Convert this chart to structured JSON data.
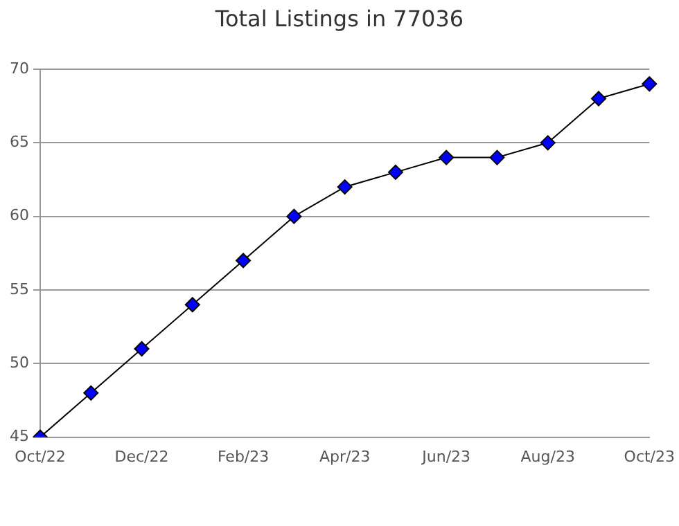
{
  "chart_data": {
    "type": "line",
    "title": "Total Listings in 77036",
    "categories": [
      "Oct/22",
      null,
      "Dec/22",
      null,
      "Feb/23",
      null,
      "Apr/23",
      null,
      "Jun/23",
      null,
      "Aug/23",
      null,
      "Oct/23"
    ],
    "series": [
      {
        "color": "#0000ff",
        "values": [
          45,
          48,
          51,
          54,
          57,
          60,
          62,
          63,
          64,
          64,
          65,
          68,
          69
        ]
      }
    ],
    "ylim": [
      45,
      70
    ],
    "yticks": [
      45,
      50,
      55,
      60,
      65,
      70
    ],
    "grid": "y",
    "legend": false,
    "marker": "diamond",
    "line_style": "solid"
  }
}
